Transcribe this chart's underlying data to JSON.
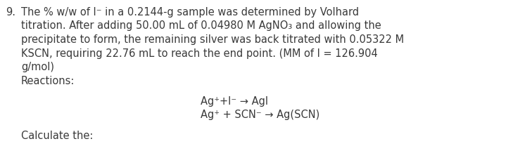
{
  "background_color": "#ffffff",
  "text_color": "#3a3a3a",
  "font_size_body": 10.5,
  "number_label": "9.",
  "line1": "The % w/w of I⁻ in a 0.2144-g sample was determined by Volhard",
  "line2": "titration. After adding 50.00 mL of 0.04980 M AgNO₃ and allowing the",
  "line3": "precipitate to form, the remaining silver was back titrated with 0.05322 M",
  "line4": "KSCN, requiring 22.76 mL to reach the end point. (MM of I = 126.904",
  "line5": "g/mol)",
  "line6": "Reactions:",
  "reaction1": "Ag⁺+I⁻ → AgI",
  "reaction2": "Ag⁺ + SCN⁻ → Ag(SCN)",
  "line_last": "Calculate the:",
  "fig_width": 7.29,
  "fig_height": 2.35,
  "dpi": 100
}
